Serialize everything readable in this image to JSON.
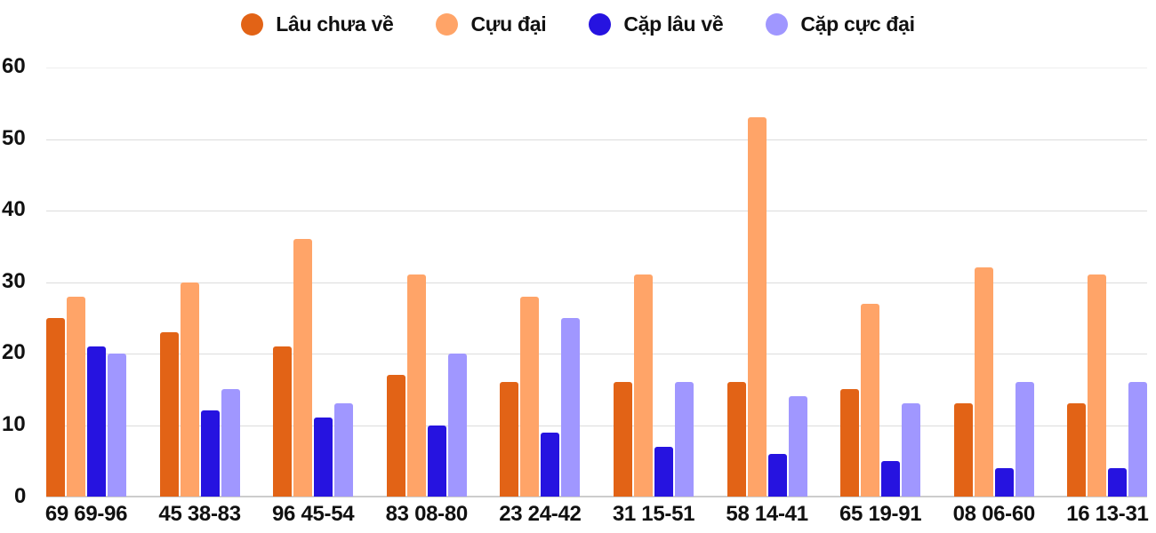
{
  "legend": [
    {
      "label": "Lâu chưa về",
      "color": "#E26316"
    },
    {
      "label": "Cựu đại",
      "color": "#FFA468"
    },
    {
      "label": "Cặp lâu về",
      "color": "#2613E0"
    },
    {
      "label": "Cặp cực đại",
      "color": "#A097FF"
    }
  ],
  "y_ticks": [
    "60",
    "50",
    "40",
    "30",
    "20",
    "10",
    "0"
  ],
  "chart_data": {
    "type": "bar",
    "title": "",
    "xlabel": "",
    "ylabel": "",
    "ylim": [
      0,
      60
    ],
    "grid": true,
    "legend_position": "top",
    "categories": [
      "69 69-96",
      "45 38-83",
      "96 45-54",
      "83 08-80",
      "23 24-42",
      "31 15-51",
      "58 14-41",
      "65 19-91",
      "08 06-60",
      "16 13-31"
    ],
    "series": [
      {
        "name": "Lâu chưa về",
        "color": "#E26316",
        "values": [
          25,
          23,
          21,
          17,
          16,
          16,
          16,
          15,
          13,
          13
        ]
      },
      {
        "name": "Cựu đại",
        "color": "#FFA468",
        "values": [
          28,
          30,
          36,
          31,
          28,
          31,
          53,
          27,
          32,
          31
        ]
      },
      {
        "name": "Cặp lâu về",
        "color": "#2613E0",
        "values": [
          21,
          12,
          11,
          10,
          9,
          7,
          6,
          5,
          4,
          4
        ]
      },
      {
        "name": "Cặp cực đại",
        "color": "#A097FF",
        "values": [
          20,
          15,
          13,
          20,
          25,
          16,
          14,
          13,
          16,
          16
        ]
      }
    ]
  }
}
